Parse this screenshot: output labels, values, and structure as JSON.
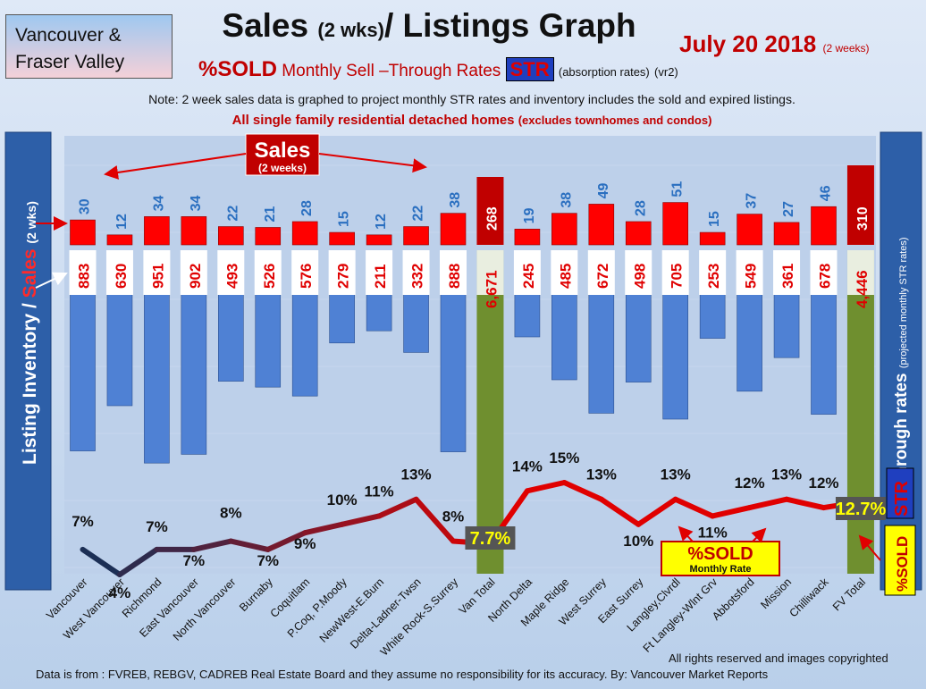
{
  "header": {
    "region": "Vancouver & Fraser Valley",
    "title_main": "Sales",
    "title_paren": "(2 wks)",
    "title_rest": "/ Listings Graph",
    "date": "July 20 2018",
    "date_note": "(2 weeks)",
    "subtitle_sold": "%SOLD",
    "subtitle_text": "Monthly Sell –Through Rates",
    "subtitle_str": "STR",
    "subtitle_rates": "(absorption rates)",
    "subtitle_version": "(vr2)",
    "note": "Note: 2 week sales data is graphed to project monthly STR rates and inventory includes the sold and expired listings.",
    "scope_main": "All single family residential detached homes",
    "scope_paren": "(excludes townhomes and condos)"
  },
  "left_axis": {
    "part1": "Listing Inventory /",
    "part2": "Sales",
    "part3": "(2 wks)"
  },
  "right_axis": {
    "part1": "Sell-through rates",
    "part2": "(projected monthly STR rates)"
  },
  "annotations": {
    "sales_label": "Sales",
    "sales_sub": "(2 weeks)",
    "sold_badge": "%SOLD",
    "sold_badge_sub": "Monthly Rate",
    "str_tag": "STR",
    "sold_tag": "%SOLD"
  },
  "footer": {
    "rights": "All rights reserved and  images copyrighted",
    "source": "Data is from : FVREB, REBGV, CADREB Real Estate Board and they assume no responsibility for its accuracy. By: Vancouver Market Reports"
  },
  "chart_data": {
    "type": "bar",
    "categories": [
      "Vancouver",
      "West Vancouver",
      "Richmond",
      "East Vancouver",
      "North Vancouver",
      "Burnaby",
      "Coquitlam",
      "P.Coq, P.Moody",
      "NewWest-E.Burn",
      "Delta-Ladner-Twsn",
      "White Rock-S.Surrey",
      "Van Total",
      "North Delta",
      "Maple Ridge",
      "West Surrey",
      "East Surrey",
      "Langley,Clvrdl",
      "Ft Langley-Wlnt Grv",
      "Abbotsford",
      "Mission",
      "Chilliwack",
      "FV Total"
    ],
    "series": [
      {
        "name": "Sales",
        "values": [
          30,
          12,
          34,
          34,
          22,
          21,
          28,
          15,
          12,
          22,
          38,
          268,
          19,
          38,
          49,
          28,
          51,
          15,
          37,
          27,
          46,
          310
        ]
      },
      {
        "name": "Listing Inventory",
        "values": [
          883,
          630,
          951,
          902,
          493,
          526,
          576,
          279,
          211,
          332,
          888,
          6671,
          245,
          485,
          672,
          498,
          705,
          253,
          549,
          361,
          678,
          4446
        ]
      },
      {
        "name": "%SOLD",
        "values": [
          7,
          4,
          7,
          7,
          8,
          7,
          9,
          10,
          11,
          13,
          8,
          7.7,
          14,
          15,
          13,
          10,
          13,
          11,
          12,
          13,
          12,
          12.7
        ]
      }
    ],
    "inventory_labels": [
      "883",
      "630",
      "951",
      "902",
      "493",
      "526",
      "576",
      "279",
      "211",
      "332",
      "888",
      "6,671",
      "245",
      "485",
      "672",
      "498",
      "705",
      "253",
      "549",
      "361",
      "678",
      "4,446"
    ],
    "str_labels": [
      "7%",
      "4%",
      "7%",
      "7%",
      "8%",
      "7%",
      "9%",
      "10%",
      "11%",
      "13%",
      "8%",
      "7.7%",
      "14%",
      "15%",
      "13%",
      "10%",
      "13%",
      "11%",
      "12%",
      "13%",
      "12%",
      "12.7%"
    ],
    "totals": [
      "Van Total",
      "FV Total"
    ]
  },
  "colors": {
    "sales": "#ff0000",
    "inventory": "#4f81d4",
    "total": "#6f8f2f",
    "str_dark": "#1c2f55",
    "str_red": "#e00000",
    "title_red": "#c00000"
  }
}
